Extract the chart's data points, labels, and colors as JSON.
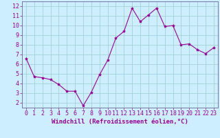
{
  "x": [
    0,
    1,
    2,
    3,
    4,
    5,
    6,
    7,
    8,
    9,
    10,
    11,
    12,
    13,
    14,
    15,
    16,
    17,
    18,
    19,
    20,
    21,
    22,
    23
  ],
  "y": [
    6.6,
    4.7,
    4.6,
    4.4,
    3.9,
    3.2,
    3.2,
    1.7,
    3.1,
    4.9,
    6.4,
    8.7,
    9.4,
    11.8,
    10.4,
    11.1,
    11.8,
    9.9,
    10.0,
    8.0,
    8.1,
    7.5,
    7.1,
    7.7
  ],
  "line_color": "#990099",
  "marker": "*",
  "marker_size": 3,
  "background_color": "#cceeff",
  "grid_color": "#99cccc",
  "xlabel": "Windchill (Refroidissement éolien,°C)",
  "xlabel_fontsize": 6.5,
  "ylabel_ticks": [
    2,
    3,
    4,
    5,
    6,
    7,
    8,
    9,
    10,
    11,
    12
  ],
  "xlim": [
    -0.5,
    23.5
  ],
  "ylim": [
    1.5,
    12.5
  ],
  "tick_fontsize": 6,
  "tick_color": "#990099",
  "axis_color": "#990099",
  "spine_color": "#7777aa",
  "xlabel_fontweight": "bold"
}
